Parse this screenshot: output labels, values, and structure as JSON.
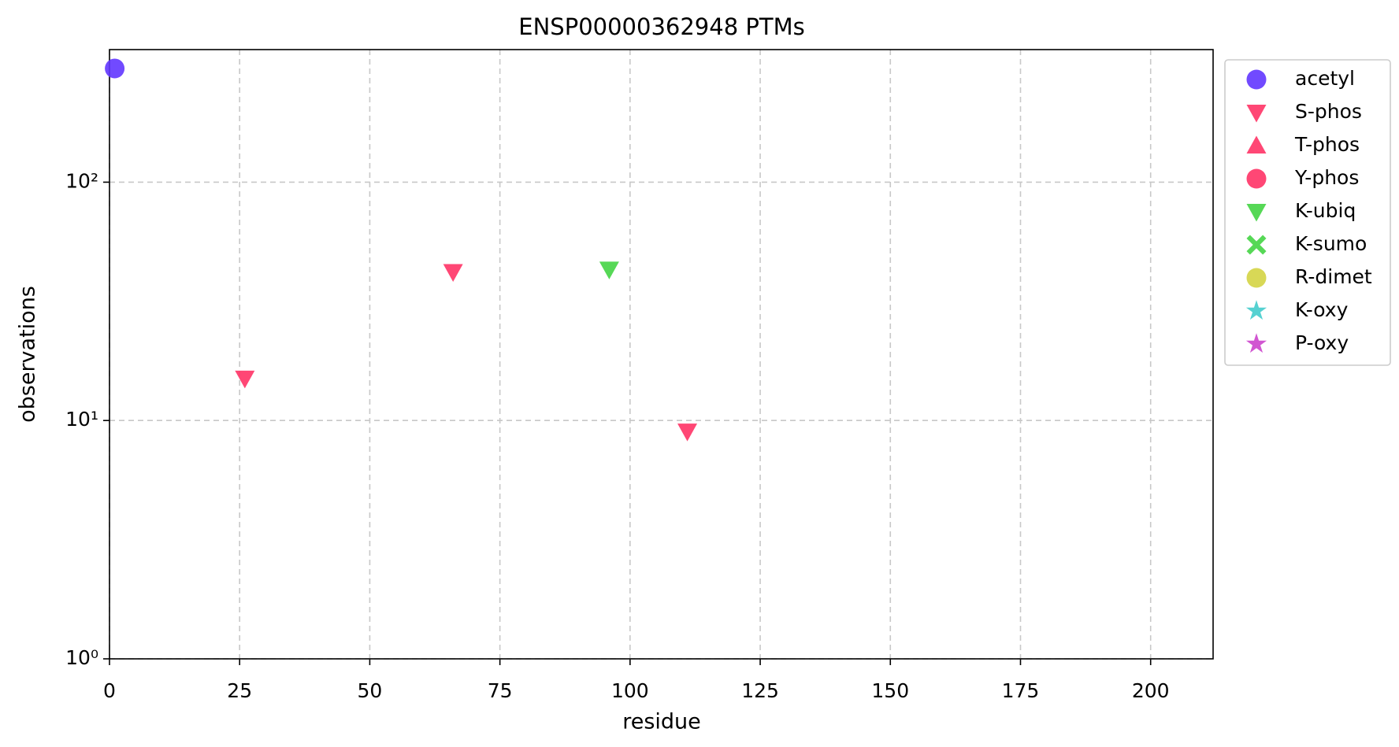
{
  "chart_data": {
    "type": "scatter",
    "title": "ENSP00000362948 PTMs",
    "x_label": "residue",
    "y_label": "observations",
    "xlim": [
      0,
      212
    ],
    "xticks": [
      0,
      25,
      50,
      75,
      100,
      125,
      150,
      175,
      200
    ],
    "ylim": [
      1,
      360
    ],
    "log_y": true,
    "yticks": [
      {
        "value": 1,
        "label": "10⁰"
      },
      {
        "value": 10,
        "label": "10¹"
      },
      {
        "value": 100,
        "label": "10²"
      }
    ],
    "grid": true,
    "legend": "outside-upper-right",
    "series": [
      {
        "name": "acetyl",
        "color": "#6236ff",
        "marker": "circle",
        "x": [
          1
        ],
        "values": [
          300
        ]
      },
      {
        "name": "S-phos",
        "color": "#ff3366",
        "marker": "triangle-down",
        "x": [
          26,
          66,
          111
        ],
        "values": [
          15,
          42,
          9
        ]
      },
      {
        "name": "T-phos",
        "color": "#ff3366",
        "marker": "triangle-up",
        "x": [],
        "values": []
      },
      {
        "name": "Y-phos",
        "color": "#ff3366",
        "marker": "circle",
        "x": [],
        "values": []
      },
      {
        "name": "K-ubiq",
        "color": "#44d444",
        "marker": "triangle-down",
        "x": [
          96
        ],
        "values": [
          43
        ]
      },
      {
        "name": "K-sumo",
        "color": "#44d444",
        "marker": "x",
        "x": [],
        "values": []
      },
      {
        "name": "R-dimet",
        "color": "#d4d444",
        "marker": "circle",
        "x": [],
        "values": []
      },
      {
        "name": "K-oxy",
        "color": "#44cccc",
        "marker": "star",
        "x": [],
        "values": []
      },
      {
        "name": "P-oxy",
        "color": "#cc44cc",
        "marker": "star",
        "x": [],
        "values": []
      }
    ]
  }
}
